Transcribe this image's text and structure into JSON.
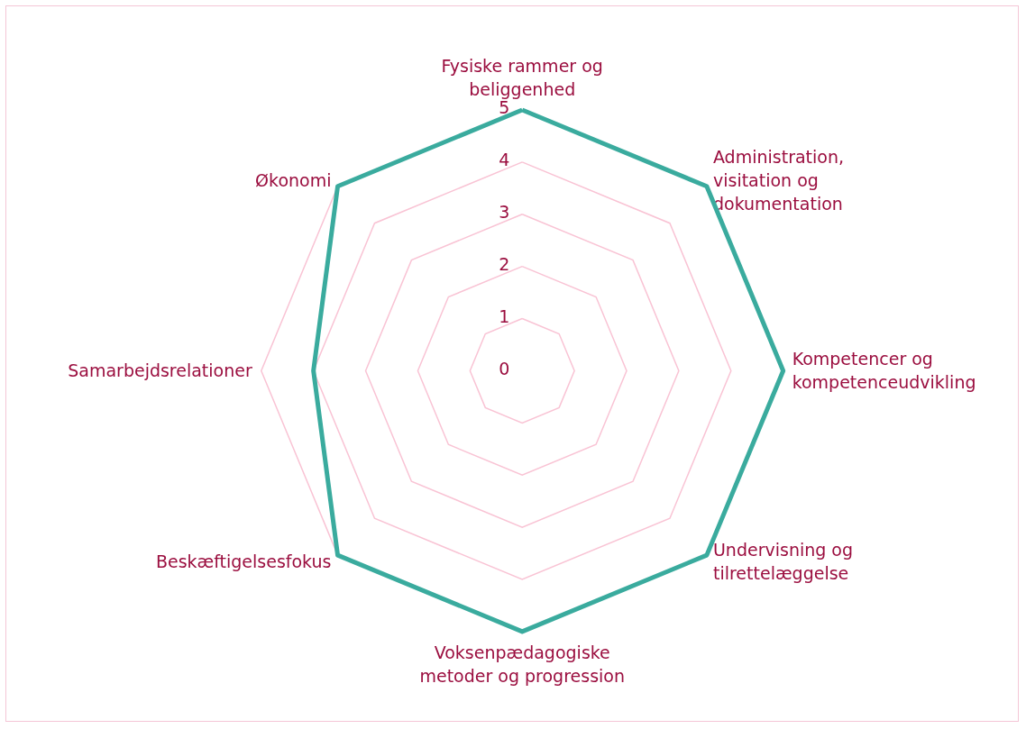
{
  "chart_data": {
    "type": "radar",
    "categories": [
      "Fysiske rammer og\nbeliggenhed",
      "Administration,\nvisitation og\ndokumentation",
      "Kompetencer og\nkompetenceudvikling",
      "Undervisning og\ntilrettelæggelse",
      "Voksenpædagogiske\nmetoder og progression",
      "Beskæftigelsesfokus",
      "Samarbejdsrelationer",
      "Økonomi"
    ],
    "series": [
      {
        "color": "#3aab9e",
        "values": [
          5,
          5,
          5,
          5,
          5,
          5,
          4,
          5
        ]
      }
    ],
    "ylim": [
      0,
      5
    ],
    "yticks": [
      0,
      1,
      2,
      3,
      4,
      5
    ],
    "grid": true,
    "marker": "none",
    "line_style": "solid"
  }
}
